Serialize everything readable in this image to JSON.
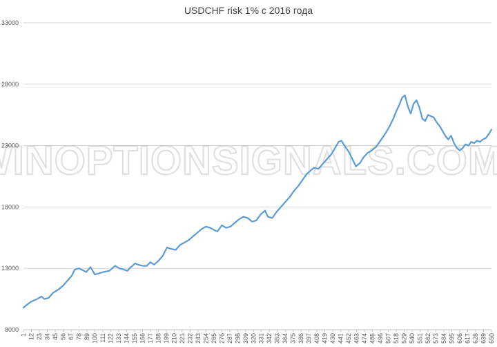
{
  "watermark": "WINOPTIONSIGNALS.COM",
  "chart_data": {
    "type": "line",
    "title": "USDCHF risk 1% с 2016 года",
    "xlabel": "",
    "ylabel": "",
    "ylim": [
      8000,
      33000
    ],
    "yticks": [
      8000,
      13000,
      18000,
      23000,
      28000,
      33000
    ],
    "xlim": [
      1,
      650
    ],
    "xticks": [
      1,
      12,
      23,
      34,
      45,
      56,
      67,
      78,
      89,
      100,
      111,
      122,
      133,
      144,
      155,
      166,
      177,
      188,
      199,
      210,
      221,
      232,
      243,
      254,
      265,
      276,
      287,
      298,
      309,
      320,
      331,
      342,
      353,
      364,
      375,
      386,
      397,
      408,
      419,
      430,
      441,
      452,
      463,
      474,
      485,
      496,
      507,
      518,
      529,
      540,
      551,
      562,
      573,
      584,
      595,
      606,
      617,
      628,
      639,
      650
    ],
    "grid": true,
    "legend": "none",
    "series": [
      {
        "color": "#5b9bd5",
        "x": [
          1,
          5,
          12,
          20,
          26,
          30,
          36,
          42,
          50,
          56,
          62,
          68,
          72,
          78,
          85,
          88,
          94,
          100,
          106,
          112,
          120,
          128,
          134,
          140,
          145,
          150,
          156,
          160,
          166,
          172,
          177,
          182,
          188,
          194,
          200,
          205,
          212,
          218,
          224,
          230,
          236,
          242,
          248,
          254,
          260,
          266,
          270,
          276,
          282,
          288,
          294,
          300,
          306,
          312,
          318,
          324,
          330,
          336,
          340,
          346,
          352,
          358,
          364,
          370,
          376,
          382,
          388,
          394,
          400,
          404,
          410,
          416,
          422,
          428,
          432,
          438,
          442,
          446,
          452,
          458,
          462,
          468,
          472,
          478,
          484,
          490,
          496,
          502,
          508,
          514,
          518,
          522,
          526,
          530,
          534,
          538,
          542,
          546,
          550,
          554,
          558,
          562,
          566,
          570,
          574,
          578,
          582,
          586,
          590,
          594,
          598,
          602,
          606,
          610,
          614,
          618,
          622,
          626,
          630,
          634,
          638,
          642,
          646,
          650
        ],
        "values": [
          9800,
          10000,
          10300,
          10500,
          10700,
          10500,
          10600,
          11000,
          11300,
          11600,
          12000,
          12400,
          12900,
          13000,
          12800,
          12700,
          13100,
          12500,
          12600,
          12700,
          12800,
          13200,
          13000,
          12900,
          12800,
          13100,
          13400,
          13300,
          13200,
          13200,
          13500,
          13300,
          13600,
          14000,
          14700,
          14600,
          14500,
          14900,
          15100,
          15300,
          15600,
          15900,
          16200,
          16400,
          16300,
          16100,
          16000,
          16500,
          16300,
          16400,
          16700,
          17000,
          17200,
          17100,
          16800,
          16900,
          17400,
          17700,
          17200,
          17100,
          17600,
          18000,
          18400,
          18800,
          19300,
          19700,
          20200,
          20700,
          21000,
          21200,
          21100,
          21500,
          21900,
          22300,
          22700,
          23300,
          23400,
          23000,
          22500,
          21800,
          21300,
          21600,
          22000,
          22400,
          22600,
          22900,
          23400,
          23900,
          24500,
          25200,
          25800,
          26300,
          26900,
          27100,
          26200,
          25600,
          26400,
          26700,
          26100,
          25200,
          25000,
          25500,
          25400,
          25300,
          24900,
          24600,
          24200,
          23800,
          23500,
          23800,
          23200,
          22800,
          22600,
          22800,
          23100,
          23000,
          23300,
          23200,
          23400,
          23300,
          23500,
          23600,
          23900,
          24300
        ]
      }
    ]
  }
}
